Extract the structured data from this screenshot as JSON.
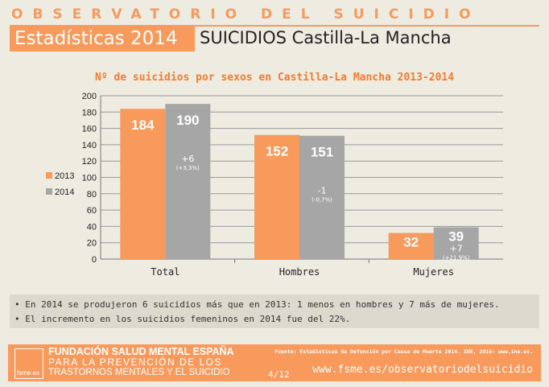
{
  "header": {
    "title": "OBSERVATORIO DEL SUICIDIO",
    "year_label": "Estadísticas 2014",
    "subtitle": "SUICIDIOS Castilla-La Mancha"
  },
  "chart_data": {
    "type": "bar",
    "title": "Nº de suicidios por sexos en Castilla-La Mancha 2013-2014",
    "categories": [
      "Total",
      "Hombres",
      "Mujeres"
    ],
    "series": [
      {
        "name": "2013",
        "values": [
          184,
          152,
          32
        ],
        "color": "#f79a5c"
      },
      {
        "name": "2014",
        "values": [
          190,
          151,
          39
        ],
        "color": "#a6a6a6"
      }
    ],
    "annotations": [
      {
        "change": "+6",
        "pct": "(+3,3%)"
      },
      {
        "change": "-1",
        "pct": "(-0,7%)"
      },
      {
        "change": "+7",
        "pct": "(+21,9%)"
      }
    ],
    "ylim": [
      0,
      200
    ],
    "yticks": [
      0,
      20,
      40,
      60,
      80,
      100,
      120,
      140,
      160,
      180,
      200
    ],
    "grid": true,
    "legend": "left"
  },
  "notes": [
    "• En 2014 se produjeron 6 suicidios más que en 2013: 1 menos en hombres y 7 más de mujeres.",
    "• El incremento en los suicidios femeninos en 2014 fue del 22%."
  ],
  "footer": {
    "logo": "fsme.es",
    "org": "FUNDACIÓN SALUD MENTAL ESPAÑA",
    "line2": "PARA LA PREVENCIÓN DE LOS",
    "line3": "TRASTORNOS MENTALES Y EL SUICIDIO",
    "source": "Fuente: Estadísticas de Defunción por Causa de Muerte 2014. INE, 2016: www.ine.es.",
    "page": "4/12",
    "url": "www.fsme.es/observatoriodelsuicidio"
  }
}
